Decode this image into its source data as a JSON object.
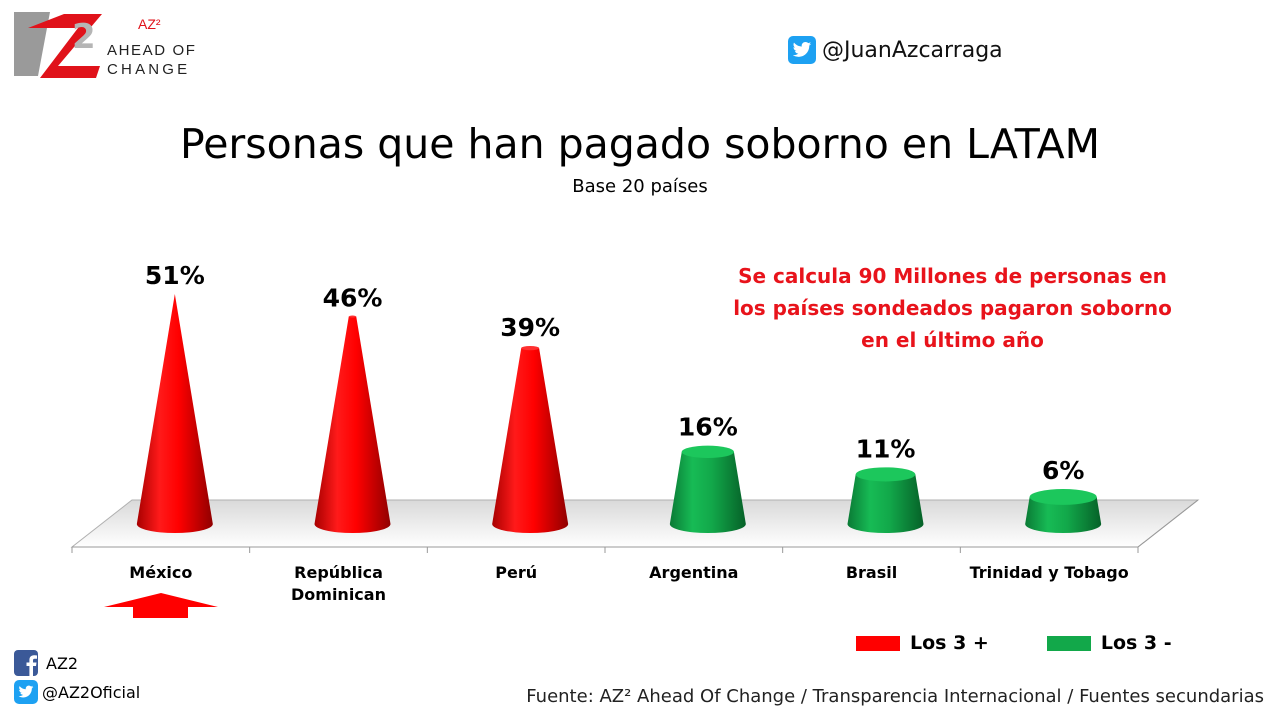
{
  "logo": {
    "small": "AZ²",
    "line1": "AHEAD OF",
    "line2": "CHANGE",
    "mark": "AZ2"
  },
  "header": {
    "twitter_icon": "twitter-icon",
    "twitter_handle": "@JuanAzcarraga"
  },
  "annotation": "Se calcula 90 Millones de personas en los  países sondeados pagaron soborno en el último año",
  "colors": {
    "top": "#ff0000",
    "bottom": "#12a84a",
    "annotation": "#e8131b",
    "arrow": "#ff0000"
  },
  "chart_data": {
    "type": "bar",
    "title": "Personas que han pagado soborno en LATAM",
    "subtitle": "Base 20 países",
    "categories": [
      "México",
      "República Dominican",
      "Perú",
      "Argentina",
      "Brasil",
      "Trinidad y Tobago"
    ],
    "category_lines": [
      [
        "México"
      ],
      [
        "República",
        "Dominican"
      ],
      [
        "Perú"
      ],
      [
        "Argentina"
      ],
      [
        "Brasil"
      ],
      [
        "Trinidad y Tobago"
      ]
    ],
    "values": [
      51,
      46,
      39,
      16,
      11,
      6
    ],
    "value_labels": [
      "51%",
      "46%",
      "39%",
      "16%",
      "11%",
      "6%"
    ],
    "groups": [
      "top",
      "top",
      "top",
      "bottom",
      "bottom",
      "bottom"
    ],
    "ylim": [
      0,
      51
    ],
    "legend": [
      {
        "label": "Los 3 +",
        "group": "top"
      },
      {
        "label": "Los 3 -",
        "group": "bottom"
      }
    ],
    "legend_position": "bottom-right",
    "highlight": {
      "category": "México",
      "marker": "up-arrow"
    }
  },
  "footer": {
    "facebook_icon": "facebook-icon",
    "facebook_label": "AZ2",
    "twitter_icon": "twitter-icon",
    "twitter_label": "@AZ2Oficial",
    "source": "Fuente: AZ² Ahead Of Change /  Transparencia Internacional / Fuentes secundarias"
  }
}
